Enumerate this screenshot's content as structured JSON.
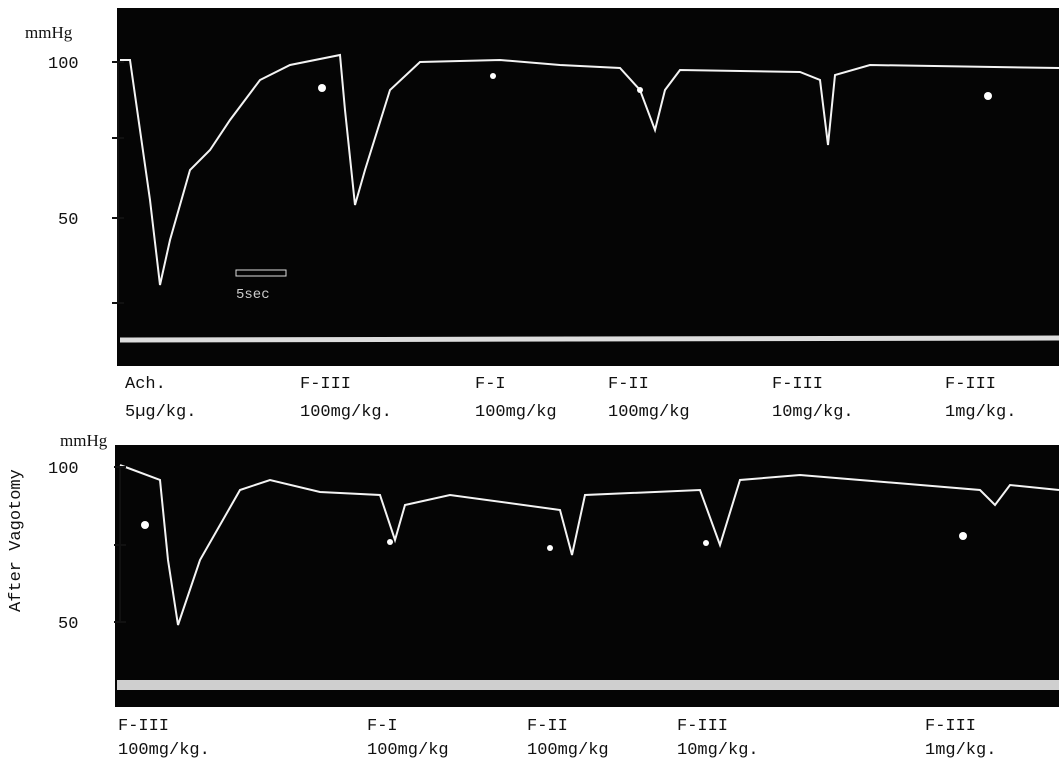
{
  "top_panel": {
    "unit": "mmHg",
    "ticks": [
      "100",
      "50"
    ],
    "scale_label": "5sec",
    "doses": [
      {
        "drug": "Ach.",
        "dose": "5µg/kg."
      },
      {
        "drug": "F-III",
        "dose": "100mg/kg."
      },
      {
        "drug": "F-I",
        "dose": "100mg/kg"
      },
      {
        "drug": "F-II",
        "dose": "100mg/kg"
      },
      {
        "drug": "F-III",
        "dose": "10mg/kg."
      },
      {
        "drug": "F-III",
        "dose": "1mg/kg."
      }
    ]
  },
  "bottom_panel": {
    "side_label": "After Vagotomy",
    "unit": "mmHg",
    "ticks": [
      "100",
      "50"
    ],
    "doses": [
      {
        "drug": "F-III",
        "dose": "100mg/kg."
      },
      {
        "drug": "F-I",
        "dose": "100mg/kg"
      },
      {
        "drug": "F-II",
        "dose": "100mg/kg"
      },
      {
        "drug": "F-III",
        "dose": "10mg/kg."
      },
      {
        "drug": "F-III",
        "dose": "1mg/kg."
      }
    ]
  }
}
